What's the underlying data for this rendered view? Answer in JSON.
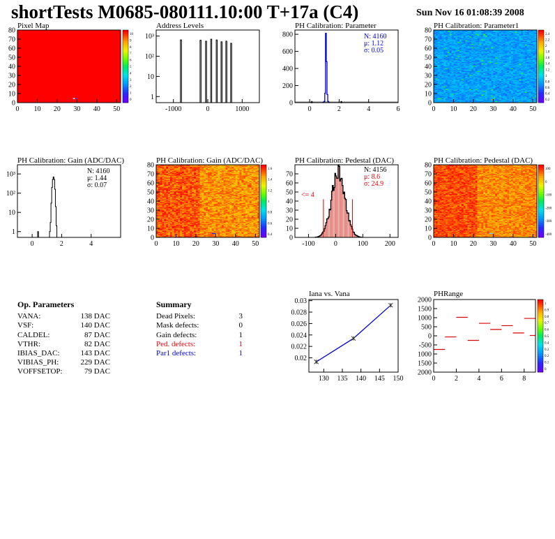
{
  "header": {
    "title": "shortTests M0685-080111.10:00 T+17a (C4)",
    "date": "Sun Nov 16 01:08:39 2008"
  },
  "colors": {
    "red_text": "#e8000b",
    "blue_text": "#0000e0",
    "line_blue": "#0000cc",
    "palette_low": "#6a00ff",
    "palette_high": "#ff0000"
  },
  "op_parameters": {
    "title": "Op. Parameters",
    "rows": [
      {
        "name": "VANA:",
        "value": "138 DAC"
      },
      {
        "name": "VSF:",
        "value": "140 DAC"
      },
      {
        "name": "CALDEL:",
        "value": "87 DAC"
      },
      {
        "name": "VTHR:",
        "value": "82 DAC"
      },
      {
        "name": "IBIAS_DAC:",
        "value": "143 DAC"
      },
      {
        "name": "VIBIAS_PH:",
        "value": "229 DAC"
      },
      {
        "name": "VOFFSETOP:",
        "value": "79 DAC"
      }
    ]
  },
  "summary": {
    "title": "Summary",
    "rows": [
      {
        "name": "Dead Pixels:",
        "value": "3",
        "color": "#000000"
      },
      {
        "name": "Mask defects:",
        "value": "0",
        "color": "#000000"
      },
      {
        "name": "Gain defects:",
        "value": "1",
        "color": "#000000"
      },
      {
        "name": "Ped. defects:",
        "value": "1",
        "color": "#e8000b"
      },
      {
        "name": "Par1 defects:",
        "value": "1",
        "color": "#0000e0"
      }
    ]
  },
  "chart_data": [
    {
      "id": "pixel-map",
      "type": "heatmap",
      "title": "Pixel Map",
      "xlim": [
        0,
        52
      ],
      "ylim": [
        0,
        80
      ],
      "xticks": [
        0,
        10,
        20,
        30,
        40,
        50
      ],
      "yticks": [
        0,
        10,
        20,
        30,
        40,
        50,
        60,
        70,
        80
      ],
      "fill": "uniform red (all pixels alive)",
      "z_range": [
        0,
        10
      ],
      "palette_ticks": [
        "10",
        "9",
        "8",
        "7",
        "6",
        "5",
        "4",
        "3",
        "2",
        "1",
        "0"
      ],
      "cells": [
        {
          "x": 28,
          "y": 4,
          "value": 0
        },
        {
          "x": 29,
          "y": 4,
          "value": 3
        }
      ]
    },
    {
      "id": "address-levels",
      "type": "bar",
      "title": "Address Levels",
      "yscale": "log",
      "xlim": [
        -1500,
        1500
      ],
      "ylim": [
        0.5,
        2000
      ],
      "xticks": [
        "-1000",
        "0",
        "1000"
      ],
      "yticks": [
        "1",
        "10",
        "10²",
        "10³"
      ],
      "peaks": [
        {
          "x": -780,
          "y": 650
        },
        {
          "x": -210,
          "y": 620
        },
        {
          "x": -50,
          "y": 560
        },
        {
          "x": 100,
          "y": 700
        },
        {
          "x": 260,
          "y": 640
        },
        {
          "x": 400,
          "y": 520
        },
        {
          "x": 540,
          "y": 560
        },
        {
          "x": 680,
          "y": 440
        }
      ]
    },
    {
      "id": "ph-cal-parameter",
      "type": "bar",
      "title": "PH Calibration: Parameter",
      "xlim": [
        -1,
        6
      ],
      "ylim": [
        0,
        850
      ],
      "xticks": [
        0,
        2,
        4,
        6
      ],
      "yticks": [
        0,
        200,
        400,
        600,
        800
      ],
      "stats": {
        "entries": "N: 4160",
        "mean": "μ: 1.12",
        "sigma": "σ: 0.05"
      },
      "bins": [
        [
          0.9,
          2
        ],
        [
          0.95,
          5
        ],
        [
          1.0,
          15
        ],
        [
          1.05,
          110
        ],
        [
          1.1,
          812
        ],
        [
          1.15,
          480
        ],
        [
          1.2,
          95
        ],
        [
          1.25,
          15
        ],
        [
          1.3,
          4
        ]
      ],
      "outliers": [
        [
          0.1,
          2
        ],
        [
          2.1,
          2
        ]
      ]
    },
    {
      "id": "ph-cal-parameter1",
      "type": "heatmap",
      "title": "PH Calibration: Parameter1",
      "xlim": [
        0,
        52
      ],
      "ylim": [
        0,
        80
      ],
      "xticks": [
        0,
        10,
        20,
        30,
        40,
        50
      ],
      "yticks": [
        0,
        10,
        20,
        30,
        40,
        50,
        60,
        70,
        80
      ],
      "z_range": [
        0,
        2.5
      ],
      "palette_ticks": [
        "2.4",
        "2.2",
        "2",
        "1.8",
        "1.6",
        "1.4",
        "1.2",
        "1",
        "0.8",
        "0.6",
        "0.4",
        "0.2"
      ],
      "typical_value": 1.12
    },
    {
      "id": "ph-cal-gain-hist",
      "type": "bar",
      "title": "PH Calibration: Gain (ADC/DAC)",
      "yscale": "log",
      "xlim": [
        -1,
        6
      ],
      "ylim": [
        0.5,
        3000
      ],
      "xticks": [
        0,
        2,
        4
      ],
      "yticks": [
        "1",
        "10",
        "10²",
        "10³"
      ],
      "stats": {
        "entries": "N: 4160",
        "mean": "μ: 1.44",
        "sigma": "σ: 0.07"
      },
      "bins": [
        [
          1.2,
          1
        ],
        [
          1.25,
          3
        ],
        [
          1.3,
          30
        ],
        [
          1.35,
          200
        ],
        [
          1.4,
          520
        ],
        [
          1.45,
          700
        ],
        [
          1.5,
          520
        ],
        [
          1.55,
          160
        ],
        [
          1.6,
          20
        ],
        [
          1.65,
          2
        ]
      ],
      "outliers": [
        [
          0.4,
          1
        ]
      ]
    },
    {
      "id": "ph-cal-gain-map",
      "type": "heatmap",
      "title": "PH Calibration: Gain (ADC/DAC)",
      "xlim": [
        0,
        52
      ],
      "ylim": [
        0,
        80
      ],
      "xticks": [
        0,
        10,
        20,
        30,
        40,
        50
      ],
      "yticks": [
        0,
        10,
        20,
        30,
        40,
        50,
        60,
        70,
        80
      ],
      "z_range": [
        0.2,
        1.7
      ],
      "palette_ticks": [
        "1.6",
        "1.4",
        "1.2",
        "1",
        "0.8",
        "0.6",
        "0.4"
      ],
      "typical_value": 1.44
    },
    {
      "id": "ph-cal-pedestal-hist",
      "type": "bar",
      "title": "PH Calibration: Pedestal (DAC)",
      "xlim": [
        -150,
        230
      ],
      "ylim": [
        0,
        80
      ],
      "xticks": [
        -100,
        0,
        100,
        200
      ],
      "yticks": [
        0,
        10,
        20,
        30,
        40,
        50,
        60,
        70
      ],
      "stats": {
        "entries": "N: 4156",
        "mean": "μ:  8.6",
        "sigma": "σ: 24.9"
      },
      "underflow_label": "<= 4",
      "gaussian": {
        "amplitude": 72,
        "mean": 8.6,
        "sigma": 24.9
      },
      "limit_lines": [
        -45,
        62
      ]
    },
    {
      "id": "ph-cal-pedestal-map",
      "type": "heatmap",
      "title": "PH Calibration: Pedestal (DAC)",
      "xlim": [
        0,
        52
      ],
      "ylim": [
        0,
        80
      ],
      "xticks": [
        0,
        10,
        20,
        30,
        40,
        50
      ],
      "yticks": [
        0,
        10,
        20,
        30,
        40,
        50,
        60,
        70,
        80
      ],
      "z_range": [
        -450,
        100
      ],
      "palette_ticks": [
        "100",
        "0",
        "-100",
        "-200",
        "-300",
        "-400"
      ],
      "typical_value": 8.6
    },
    {
      "id": "iana-vs-vana",
      "type": "line",
      "title": "Iana vs. Vana",
      "xlim": [
        126,
        150
      ],
      "ylim": [
        0.0175,
        0.0302
      ],
      "xticks": [
        130,
        135,
        140,
        145,
        150
      ],
      "yticks": [
        0.02,
        0.022,
        0.024,
        0.026,
        0.028,
        0.03
      ],
      "x": [
        128,
        138,
        148
      ],
      "y": [
        0.0193,
        0.0234,
        0.0292
      ]
    },
    {
      "id": "phrange",
      "type": "scatter",
      "title": "PHRange",
      "xlim": [
        0,
        9
      ],
      "ylim": [
        -2000,
        2000
      ],
      "xticks": [
        0,
        2,
        4,
        6,
        8
      ],
      "yticks": [
        "2000",
        "1500",
        "1000",
        "500",
        "0",
        "-500",
        "1000",
        "1500",
        "2000"
      ],
      "palette_ticks": [
        "1",
        "0.9",
        "0.8",
        "0.7",
        "0.6",
        "0.5",
        "0.4",
        "0.3",
        "0.2",
        "0.1",
        "0"
      ],
      "segments": [
        {
          "x": 0,
          "y": -750
        },
        {
          "x": 1,
          "y": -60
        },
        {
          "x": 2,
          "y": 1020
        },
        {
          "x": 3,
          "y": -250
        },
        {
          "x": 4,
          "y": 690
        },
        {
          "x": 5,
          "y": 350
        },
        {
          "x": 6,
          "y": 560
        },
        {
          "x": 7,
          "y": 160
        },
        {
          "x": 8,
          "y": 960
        },
        {
          "x": 8.5,
          "y": 20
        }
      ]
    }
  ]
}
